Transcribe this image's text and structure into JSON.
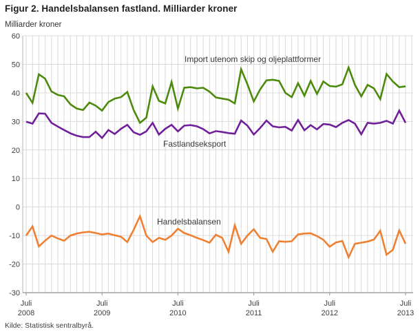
{
  "title": "Figur 2. Handelsbalansen fastland. Milliarder kroner",
  "y_axis_label": "Milliarder kroner",
  "source": "Kilde: Statistisk sentralbyrå.",
  "colors": {
    "import_line": "#4b8a0b",
    "export_line": "#701f9a",
    "balance_line": "#ef8032",
    "gridline": "#d9d9d9",
    "axis": "#8f8f8f",
    "tick_text": "#3c3c3c"
  },
  "chart_data": {
    "type": "line",
    "title": "Figur 2. Handelsbalansen fastland. Milliarder kroner",
    "ylabel": "Milliarder kroner",
    "ylim": [
      -30,
      60
    ],
    "y_ticks": [
      60,
      50,
      40,
      30,
      20,
      10,
      0,
      -10,
      -20,
      -30
    ],
    "grid": "both",
    "x_description": "Monthly values from Juli 2008 to Juli 2013 (61 points)",
    "x_tick_labels": [
      {
        "top": "Juli",
        "bottom": "2008"
      },
      {
        "top": "Juli",
        "bottom": "2009"
      },
      {
        "top": "Juli",
        "bottom": "2010"
      },
      {
        "top": "Juli",
        "bottom": "2011"
      },
      {
        "top": "Juli",
        "bottom": "2012"
      },
      {
        "top": "Juli",
        "bottom": "2013"
      }
    ],
    "x_ticks_every_n_months": 12,
    "legend_position": "inline-annotations",
    "series": [
      {
        "name": "Import utenom skip og oljeplattformer",
        "color": "#4b8a0b",
        "values": [
          40.0,
          36.5,
          46.5,
          45.0,
          40.5,
          39.3,
          38.8,
          36.0,
          34.5,
          34.0,
          36.6,
          35.5,
          33.8,
          36.8,
          38.0,
          38.5,
          40.3,
          34.0,
          29.5,
          31.3,
          42.3,
          37.2,
          36.3,
          43.8,
          34.5,
          41.8,
          42.0,
          41.6,
          41.8,
          40.4,
          38.4,
          38.0,
          37.6,
          36.3,
          48.3,
          43.0,
          37.0,
          41.2,
          44.4,
          44.6,
          44.2,
          40.0,
          38.5,
          43.4,
          39.0,
          44.2,
          39.6,
          44.0,
          42.4,
          42.2,
          43.0,
          48.9,
          42.8,
          38.8,
          42.8,
          41.6,
          37.8,
          46.6,
          44.0,
          42.0,
          42.3
        ]
      },
      {
        "name": "Fastlandseksport",
        "color": "#701f9a",
        "values": [
          29.9,
          29.2,
          32.8,
          32.7,
          29.5,
          28.2,
          27.0,
          25.8,
          25.0,
          24.5,
          24.5,
          26.4,
          24.2,
          27.0,
          25.6,
          27.4,
          28.8,
          26.2,
          25.3,
          26.5,
          29.5,
          25.4,
          27.4,
          28.8,
          26.5,
          28.5,
          28.7,
          28.3,
          27.3,
          25.8,
          26.6,
          26.3,
          25.9,
          25.7,
          30.3,
          28.5,
          25.4,
          27.7,
          30.3,
          28.3,
          27.9,
          28.1,
          26.8,
          30.5,
          26.9,
          28.7,
          27.2,
          29.1,
          28.9,
          28.0,
          29.5,
          30.5,
          29.2,
          25.5,
          29.5,
          29.2,
          29.5,
          30.2,
          29.2,
          33.8,
          29.5
        ]
      },
      {
        "name": "Handelsbalansen",
        "color": "#ef8032",
        "values": [
          -10.0,
          -6.8,
          -13.8,
          -11.8,
          -10.0,
          -11.0,
          -11.8,
          -10.0,
          -9.3,
          -8.9,
          -8.7,
          -9.1,
          -9.6,
          -9.3,
          -9.9,
          -10.4,
          -12.3,
          -8.0,
          -3.2,
          -10.0,
          -12.3,
          -10.8,
          -11.5,
          -10.0,
          -7.6,
          -9.1,
          -9.9,
          -10.8,
          -11.6,
          -12.5,
          -9.7,
          -10.8,
          -15.7,
          -6.4,
          -12.9,
          -10.0,
          -7.8,
          -10.8,
          -11.2,
          -15.7,
          -12.0,
          -12.2,
          -12.0,
          -9.6,
          -9.3,
          -9.2,
          -10.2,
          -11.5,
          -13.9,
          -12.4,
          -11.9,
          -17.6,
          -12.9,
          -12.5,
          -12.1,
          -11.4,
          -8.3,
          -16.7,
          -15.0,
          -8.2,
          -12.9
        ]
      }
    ]
  }
}
